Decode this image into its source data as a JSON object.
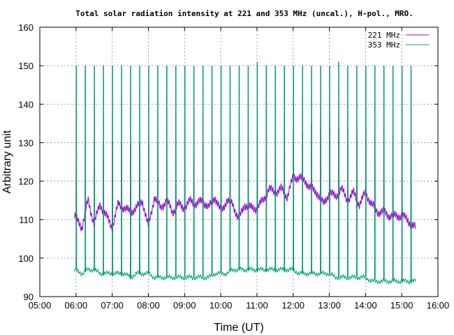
{
  "chart_data": {
    "type": "line",
    "title": "Total solar radiation intensity at 221 and 353 MHz (uncal.), H-pol., MRO.",
    "xlabel": "Time (UT)",
    "ylabel": "Arbitrary unit",
    "xlim": [
      "05:00",
      "16:00"
    ],
    "ylim": [
      90,
      160
    ],
    "x_ticks": [
      "05:00",
      "06:00",
      "07:00",
      "08:00",
      "09:00",
      "10:00",
      "11:00",
      "12:00",
      "13:00",
      "14:00",
      "15:00",
      "16:00"
    ],
    "y_ticks": [
      90,
      100,
      110,
      120,
      130,
      140,
      150,
      160
    ],
    "grid": true,
    "legend_position": "top-right",
    "calibration_interval_min": 15,
    "series": [
      {
        "name": "221 MHz",
        "color": "#9400d3",
        "time": [
          "05:57",
          "06:10",
          "06:20",
          "06:30",
          "06:40",
          "06:50",
          "07:00",
          "07:10",
          "07:20",
          "07:30",
          "07:40",
          "07:50",
          "08:00",
          "08:10",
          "08:20",
          "08:30",
          "08:40",
          "08:50",
          "09:00",
          "09:10",
          "09:20",
          "09:30",
          "09:40",
          "09:50",
          "10:00",
          "10:10",
          "10:20",
          "10:30",
          "10:40",
          "10:50",
          "11:00",
          "11:10",
          "11:20",
          "11:30",
          "11:40",
          "11:50",
          "12:00",
          "12:10",
          "12:20",
          "12:30",
          "12:40",
          "12:50",
          "13:00",
          "13:10",
          "13:20",
          "13:30",
          "13:40",
          "13:50",
          "14:00",
          "14:10",
          "14:20",
          "14:30",
          "14:40",
          "14:50",
          "15:00",
          "15:10",
          "15:20",
          "15:23"
        ],
        "values": [
          111,
          108,
          115,
          109,
          114,
          111,
          108,
          114,
          113,
          112,
          113,
          115,
          108,
          116,
          113,
          115,
          112,
          114,
          113,
          115,
          114,
          115,
          113,
          116,
          112,
          115,
          114,
          110,
          114,
          113,
          113,
          115,
          118,
          117,
          118,
          116,
          121,
          121,
          120,
          118,
          117,
          114,
          117,
          116,
          118,
          115,
          117,
          114,
          117,
          114,
          112,
          112,
          111,
          111,
          111,
          110,
          108,
          108
        ],
        "calibration_peaks": [
          130,
          130,
          130,
          130,
          130,
          130,
          130,
          130,
          130,
          130,
          130,
          130,
          130,
          130,
          130,
          130,
          130,
          130,
          130,
          132,
          132,
          132,
          132,
          133,
          133,
          133,
          135,
          134,
          134,
          134,
          134,
          134,
          134,
          134,
          134,
          132,
          132,
          130,
          130,
          129,
          129
        ]
      },
      {
        "name": "353 MHz",
        "color": "#009e73",
        "time": [
          "05:57",
          "06:10",
          "06:20",
          "06:30",
          "06:40",
          "06:50",
          "07:00",
          "07:10",
          "07:20",
          "07:30",
          "07:40",
          "07:50",
          "08:00",
          "08:10",
          "08:20",
          "08:30",
          "08:40",
          "08:50",
          "09:00",
          "09:10",
          "09:20",
          "09:30",
          "09:40",
          "09:50",
          "10:00",
          "10:10",
          "10:20",
          "10:30",
          "10:40",
          "10:50",
          "11:00",
          "11:10",
          "11:20",
          "11:30",
          "11:40",
          "11:50",
          "12:00",
          "12:10",
          "12:20",
          "12:30",
          "12:40",
          "12:50",
          "13:00",
          "13:10",
          "13:20",
          "13:30",
          "13:40",
          "13:50",
          "14:00",
          "14:10",
          "14:20",
          "14:30",
          "14:40",
          "14:50",
          "15:00",
          "15:10",
          "15:20",
          "15:23"
        ],
        "values": [
          97,
          96,
          97,
          97,
          96,
          96,
          96,
          96,
          96,
          95,
          96,
          96,
          96,
          95,
          95,
          95,
          95,
          95,
          95,
          95,
          95,
          95,
          95,
          96,
          96,
          96,
          97,
          97,
          97,
          97,
          97,
          97,
          97,
          97,
          97,
          97,
          97,
          96,
          96,
          96,
          96,
          96,
          96,
          95,
          95,
          95,
          95,
          95,
          95,
          94,
          94,
          94,
          94,
          94,
          94,
          94,
          94,
          94
        ],
        "calibration_peaks": [
          150,
          150,
          150,
          150,
          150,
          150,
          150,
          150,
          150,
          150,
          150,
          150,
          150,
          150,
          150,
          150,
          150,
          150,
          150,
          150,
          151,
          150,
          150,
          150,
          150,
          150,
          150,
          150,
          150,
          151,
          150,
          150,
          150,
          150,
          150,
          150,
          150,
          150,
          150,
          150,
          150
        ]
      }
    ]
  }
}
